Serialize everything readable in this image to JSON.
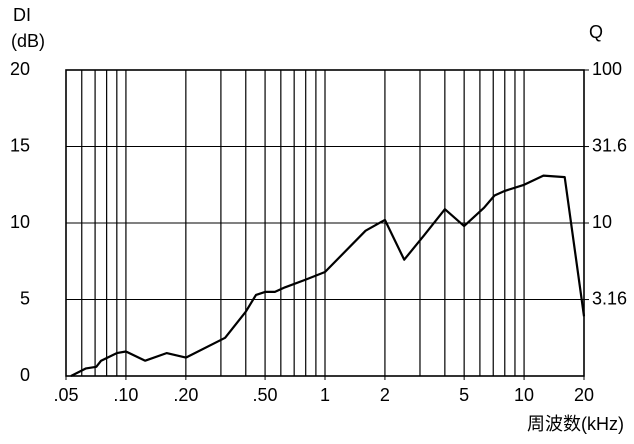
{
  "chart_data": {
    "type": "line",
    "ylabel": [
      "DI",
      "(dB)"
    ],
    "y2label": "Q",
    "xlabel": "周波数(kHz)",
    "xscale": "log",
    "y2scale": "log",
    "x": [
      0.053,
      0.063,
      0.071,
      0.075,
      0.09,
      0.1,
      0.125,
      0.16,
      0.2,
      0.315,
      0.4,
      0.45,
      0.5,
      0.56,
      0.63,
      0.8,
      1,
      1.6,
      2,
      2.5,
      3.15,
      4,
      5,
      6.3,
      7.1,
      8,
      10,
      12.5,
      16,
      20
    ],
    "series": [
      {
        "name": "DI",
        "color": "#000000",
        "values": [
          0,
          0.5,
          0.6,
          1.0,
          1.5,
          1.6,
          1.0,
          1.5,
          1.2,
          2.5,
          4.2,
          5.3,
          5.5,
          5.5,
          5.8,
          6.3,
          6.8,
          9.5,
          10.2,
          7.6,
          9.2,
          10.9,
          9.8,
          11.0,
          11.8,
          12.1,
          12.5,
          13.1,
          13.0,
          3.9
        ]
      }
    ],
    "xlim": [
      0.05,
      20
    ],
    "xticks": [
      {
        "value": 0.05,
        "label": ".05"
      },
      {
        "value": 0.1,
        "label": ".10"
      },
      {
        "value": 0.2,
        "label": ".20"
      },
      {
        "value": 0.5,
        "label": ".50"
      },
      1,
      2,
      5,
      10,
      20
    ],
    "xgrid": [
      0.06,
      0.07,
      0.08,
      0.09,
      0.1,
      0.2,
      0.3,
      0.4,
      0.5,
      0.6,
      0.7,
      0.8,
      0.9,
      1,
      2,
      3,
      4,
      5,
      6,
      7,
      8,
      9,
      10
    ],
    "ylim": [
      0,
      20
    ],
    "yticks": [
      0,
      5,
      10,
      15,
      20
    ],
    "y2lim": [
      1,
      100
    ],
    "y2ticks": [
      100,
      31.6,
      10,
      3.16
    ],
    "grid": true
  }
}
